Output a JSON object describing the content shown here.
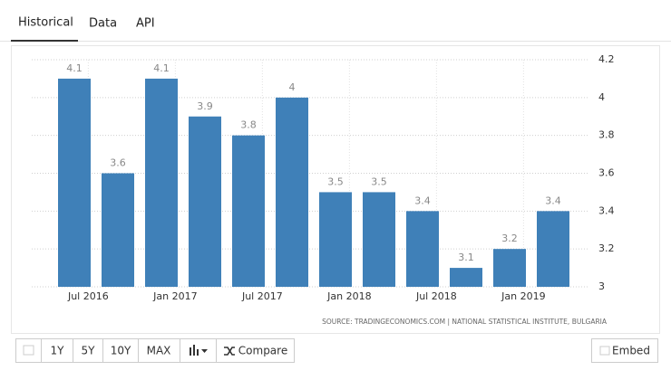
{
  "tabs": [
    "Historical",
    "Data",
    "API"
  ],
  "chart_data": {
    "type": "bar",
    "categories": [
      "Jul 2016",
      null,
      "Jan 2017",
      null,
      "Jul 2017",
      null,
      "Jan 2018",
      null,
      "Jul 2018",
      null,
      "Jan 2019",
      null
    ],
    "values": [
      4.1,
      3.6,
      4.1,
      3.9,
      3.8,
      4,
      3.5,
      3.5,
      3.4,
      3.1,
      3.2,
      3.4
    ],
    "color": "#3f80b8",
    "ylim": [
      3,
      4.2
    ],
    "yticks": [
      3,
      3.2,
      3.4,
      3.6,
      3.8,
      4,
      4.2
    ],
    "grid": true,
    "source": "SOURCE: TRADINGECONOMICS.COM | NATIONAL STATISTICAL INSTITUTE, BULGARIA"
  },
  "toolbar": {
    "ranges": [
      "1Y",
      "5Y",
      "10Y",
      "MAX"
    ],
    "compare": "Compare",
    "embed": "Embed"
  }
}
